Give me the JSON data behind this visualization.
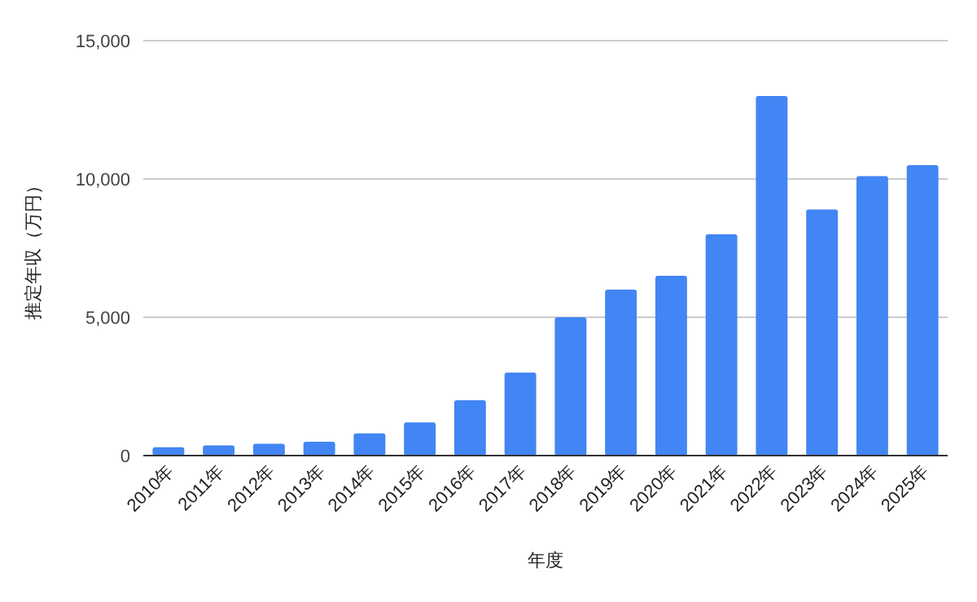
{
  "chart_data": {
    "type": "bar",
    "xlabel": "年度",
    "ylabel": "推定年収（万円）",
    "categories": [
      "2010年",
      "2011年",
      "2012年",
      "2013年",
      "2014年",
      "2015年",
      "2016年",
      "2017年",
      "2018年",
      "2019年",
      "2020年",
      "2021年",
      "2022年",
      "2023年",
      "2024年",
      "2025年"
    ],
    "series": [
      {
        "color": "#4285f4",
        "values": [
          300,
          370,
          430,
          500,
          800,
          1200,
          2000,
          3000,
          5000,
          6000,
          6500,
          8000,
          13000,
          8900,
          10100,
          10500
        ]
      }
    ],
    "ylim": [
      0,
      15000
    ],
    "yticks": [
      {
        "value": 0,
        "label": "0"
      },
      {
        "value": 5000,
        "label": "5,000"
      },
      {
        "value": 10000,
        "label": "10,000"
      },
      {
        "value": 15000,
        "label": "15,000"
      }
    ],
    "grid": "y"
  }
}
